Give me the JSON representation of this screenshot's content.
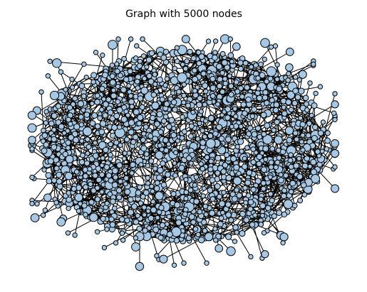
{
  "title": "Graph with 5000 nodes",
  "graph": {
    "node_count": 5000,
    "node_fill": "#a6c8e4",
    "node_stroke": "#000000",
    "edge_color": "#000000"
  }
}
